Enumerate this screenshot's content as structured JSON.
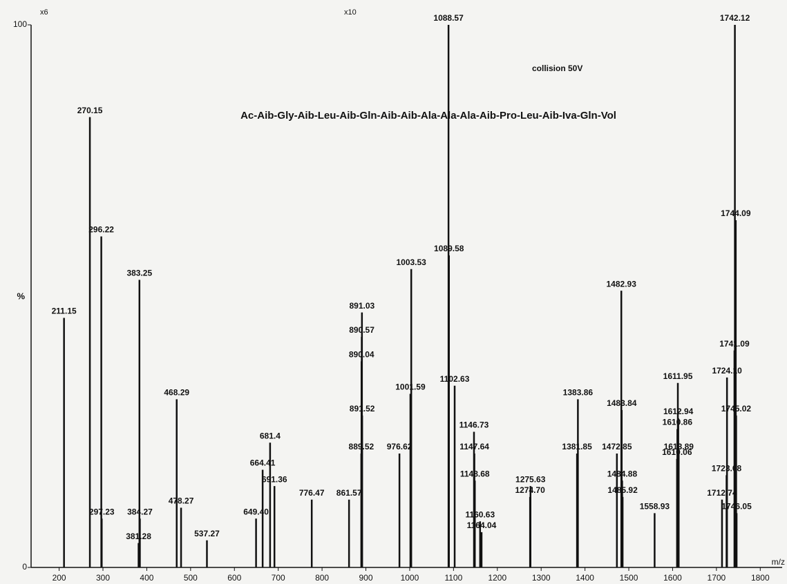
{
  "chart_data": {
    "type": "bar",
    "title": "Ac-Aib-Gly-Aib-Leu-Aib-Gln-Aib-Aib-Ala-Ala-Ala-Aib-Pro-Leu-Aib-Iva-Gln-Vol",
    "annotations": [
      "collision 50V",
      "x6",
      "x10"
    ],
    "x_label": "m/z",
    "y_label": "%",
    "x": [
      211.15,
      270.15,
      296.22,
      297.23,
      381.28,
      383.25,
      384.27,
      468.29,
      478.27,
      537.27,
      649.4,
      664.41,
      681.4,
      691.36,
      776.47,
      861.57,
      889.52,
      890.04,
      890.57,
      891.03,
      891.52,
      976.62,
      1001.59,
      1003.53,
      1088.57,
      1089.58,
      1102.63,
      1146.73,
      1147.64,
      1148.68,
      1160.63,
      1164.04,
      1274.7,
      1275.63,
      1381.85,
      1383.86,
      1472.85,
      1482.93,
      1483.84,
      1484.88,
      1485.92,
      1558.93,
      1610.06,
      1610.86,
      1611.95,
      1612.94,
      1613.89,
      1712.74,
      1723.08,
      1724.1,
      1741.09,
      1742.12,
      1744.09,
      1745.02,
      1746.05
    ],
    "x_labels": [
      "211.15",
      "270.15",
      "296.22",
      "297.23",
      "381.28",
      "383.25",
      "384.27",
      "468.29",
      "478.27",
      "537.27",
      "649.40",
      "664.41",
      "681.4",
      "691.36",
      "776.47",
      "861.57",
      "889.52",
      "890.04",
      "890.57",
      "891.03",
      "891.52",
      "976.62",
      "1001.59",
      "1003.53",
      "1088.57",
      "1089.58",
      "1102.63",
      "1146.73",
      "1147.64",
      "1148.68",
      "1160.63",
      "1164.04",
      "1274.70",
      "1275.63",
      "1381.85",
      "1383.86",
      "1472.85",
      "1482.93",
      "1483.84",
      "1484.88",
      "1485.92",
      "1558.93",
      "1610.06",
      "1610.86",
      "1611.95",
      "1612.94",
      "1613.89",
      "1712.74",
      "1723.08",
      "1724.10",
      "1741.09",
      "1742.12",
      "1744.09",
      "1745.02",
      "1746.05"
    ],
    "values": [
      46,
      83,
      61,
      9,
      4.5,
      53,
      9,
      31,
      11,
      5,
      9,
      18,
      23,
      15,
      12.5,
      12.5,
      21,
      38,
      42.5,
      47,
      28,
      21,
      32,
      55,
      100,
      57.5,
      33.5,
      25,
      21,
      16,
      8.5,
      6.5,
      13,
      15,
      21,
      31,
      21,
      51,
      29,
      16,
      13,
      10,
      20,
      25.5,
      34,
      27.5,
      21,
      12.5,
      17,
      35,
      40,
      100,
      64,
      28,
      10
    ],
    "color": "#111111",
    "xlim": [
      136,
      1850
    ],
    "ylim": [
      0,
      100
    ],
    "xticks": [
      200,
      300,
      400,
      500,
      600,
      700,
      800,
      900,
      1000,
      1100,
      1200,
      1300,
      1400,
      1500,
      1600,
      1700,
      1800
    ],
    "yticks": [
      0,
      100
    ]
  }
}
